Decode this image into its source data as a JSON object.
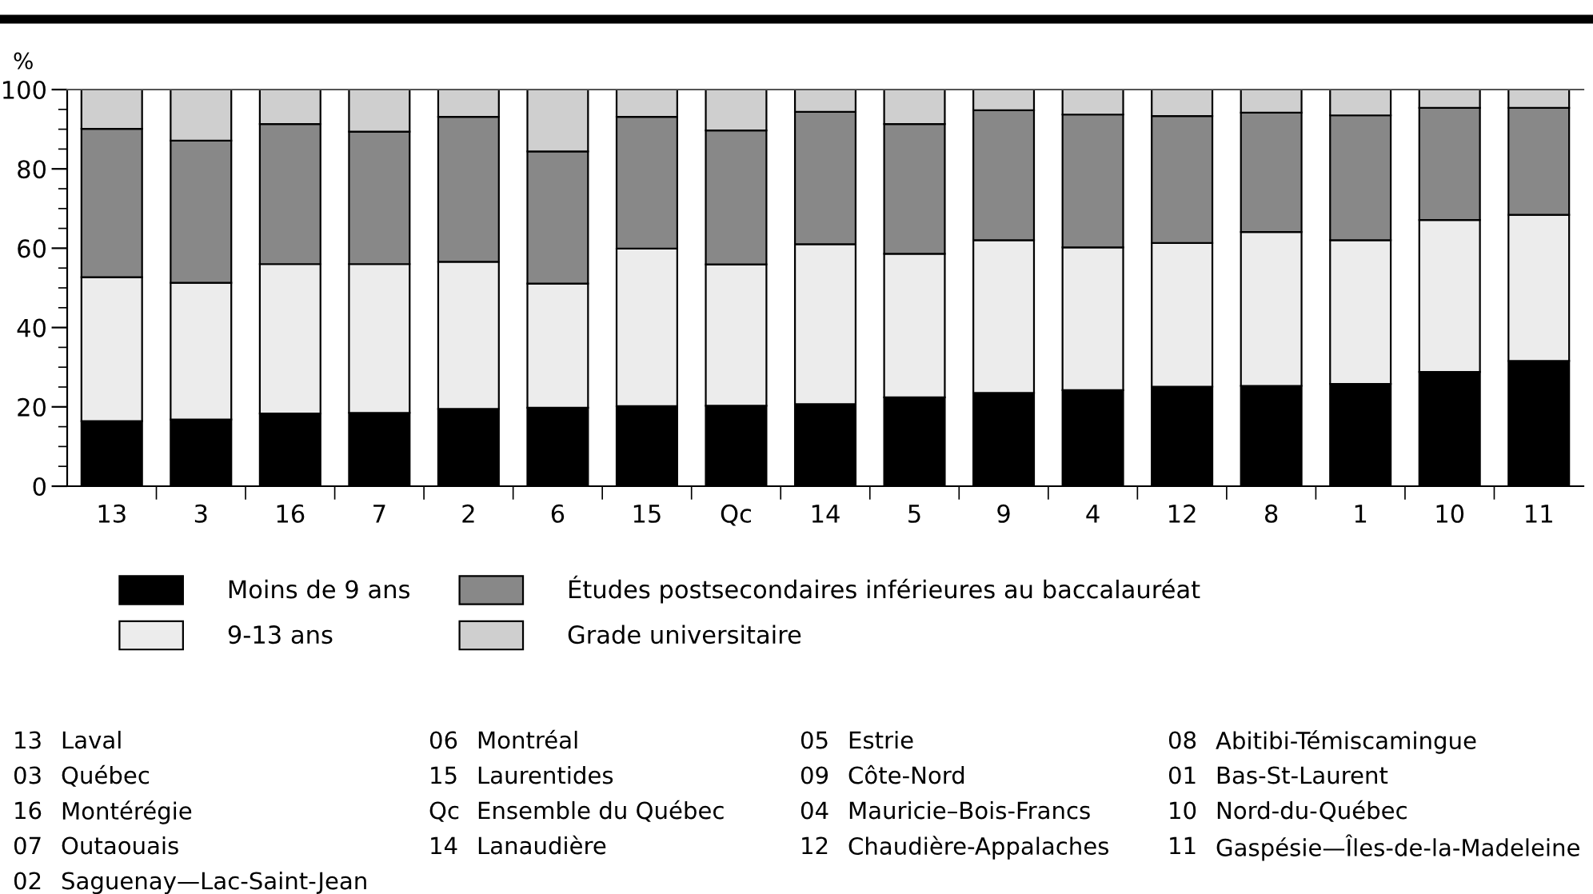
{
  "chart_data": {
    "type": "bar",
    "stacked": true,
    "ylabel": "%",
    "categories": [
      "13",
      "3",
      "16",
      "7",
      "2",
      "6",
      "15",
      "Qc",
      "14",
      "5",
      "9",
      "4",
      "12",
      "8",
      "1",
      "10",
      "11"
    ],
    "series": [
      {
        "name": "Moins de 9 ans",
        "color": "#000000",
        "values": [
          16.4,
          16.8,
          18.3,
          18.5,
          19.5,
          19.8,
          20.2,
          20.3,
          20.7,
          22.4,
          23.5,
          24.2,
          25.1,
          25.3,
          25.8,
          28.8,
          31.6
        ]
      },
      {
        "name": "9-13 ans",
        "color": "#ececec",
        "values": [
          36.3,
          34.5,
          37.7,
          37.5,
          37.1,
          31.3,
          39.7,
          35.6,
          40.3,
          36.2,
          38.5,
          36.0,
          36.2,
          38.8,
          36.2,
          38.3,
          36.8
        ]
      },
      {
        "name": "Études postsecondaires inférieures au baccalauréat",
        "color": "#888888",
        "values": [
          37.4,
          35.8,
          35.3,
          33.4,
          36.5,
          33.3,
          33.2,
          33.8,
          33.4,
          32.7,
          32.8,
          33.5,
          32.0,
          30.1,
          31.5,
          28.3,
          27.0
        ]
      },
      {
        "name": "Grade universitaire",
        "color": "#cfcfcf",
        "values": [
          9.9,
          12.9,
          8.7,
          10.6,
          6.9,
          15.6,
          6.9,
          10.3,
          5.6,
          8.7,
          5.2,
          6.3,
          6.7,
          5.8,
          6.5,
          4.6,
          4.6
        ]
      }
    ],
    "ylim": [
      0,
      100
    ],
    "yticks": [
      0,
      20,
      40,
      60,
      80,
      100
    ],
    "grid": false,
    "legend": "bottom",
    "annotations": [
      "13 Laval",
      "03 Québec",
      "16 Montérégie",
      "07 Outaouais",
      "02 Saguenay—Lac-Saint-Jean",
      "06 Montréal",
      "15 Laurentides",
      "Qc Ensemble du Québec",
      "14 Lanaudière",
      "05 Estrie",
      "09 Côte-Nord",
      "04 Mauricie–Bois-Francs",
      "12 Chaudière-Appalaches",
      "08 Abitibi-Témiscamingue",
      "01 Bas-St-Laurent",
      "10 Nord-du-Québec",
      "11 Gaspésie—Îles-de-la-Madeleine"
    ]
  }
}
